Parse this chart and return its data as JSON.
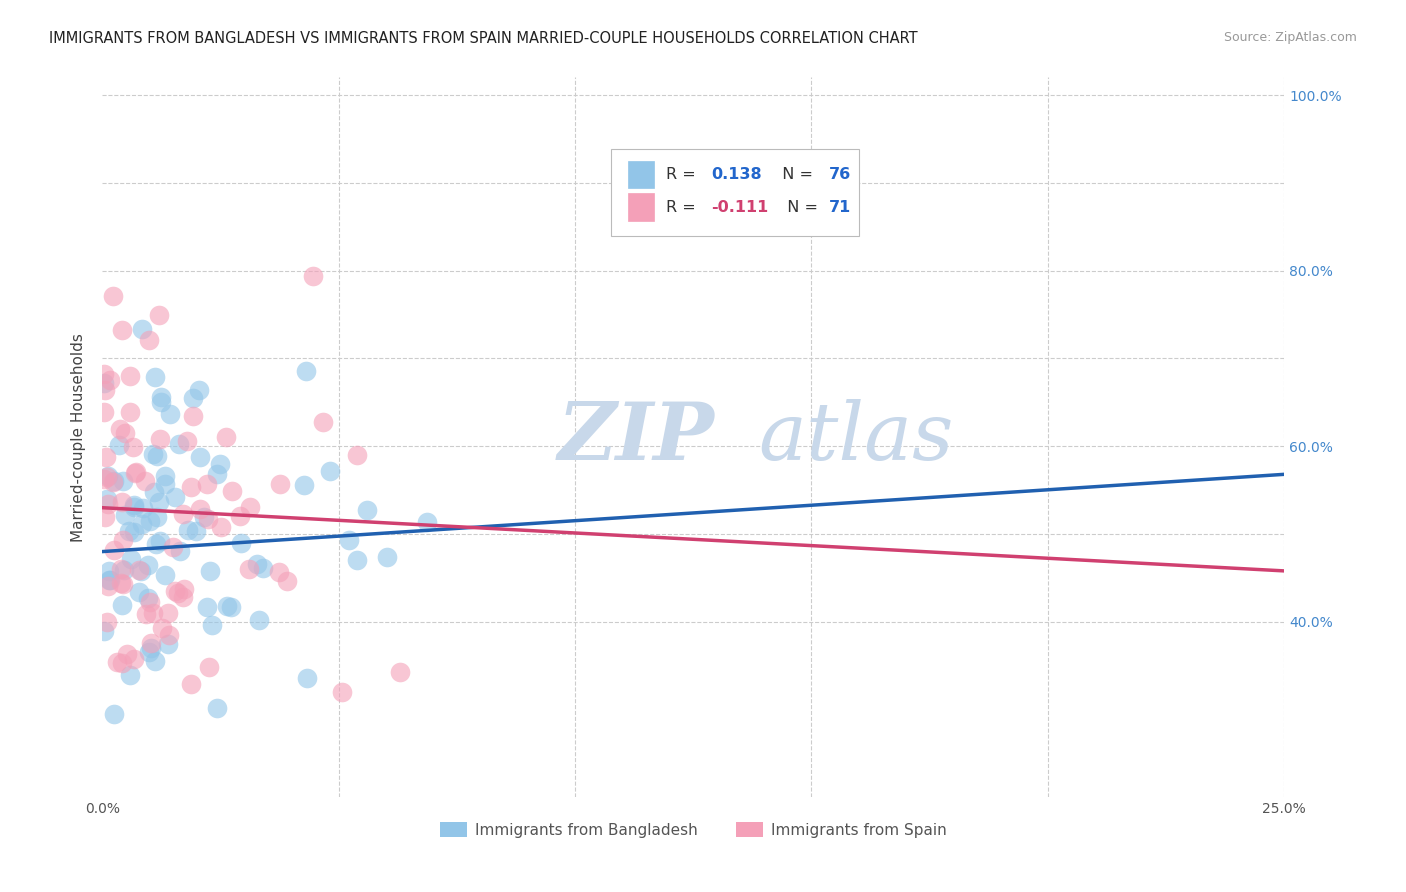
{
  "title": "IMMIGRANTS FROM BANGLADESH VS IMMIGRANTS FROM SPAIN MARRIED-COUPLE HOUSEHOLDS CORRELATION CHART",
  "source": "Source: ZipAtlas.com",
  "ylabel": "Married-couple Households",
  "xlim": [
    0.0,
    0.25
  ],
  "ylim": [
    0.2,
    1.02
  ],
  "right_ytick_labels": [
    "40.0%",
    "60.0%",
    "80.0%",
    "100.0%"
  ],
  "right_yticks": [
    0.4,
    0.6,
    0.8,
    1.0
  ],
  "r_bangladesh": 0.138,
  "n_bangladesh": 76,
  "r_spain": -0.111,
  "n_spain": 71,
  "color_bangladesh": "#92C5E8",
  "color_spain": "#F4A0B8",
  "line_color_bangladesh": "#2060B0",
  "line_color_spain": "#D04070",
  "watermark": "ZIPatlas",
  "watermark_color": "#C8D8EA",
  "background_color": "#FFFFFF",
  "grid_color": "#CCCCCC",
  "title_color": "#222222",
  "axis_label_color": "#444444",
  "legend_r1_black": "R = ",
  "legend_r1_blue": "0.138",
  "legend_n1_black": "  N = ",
  "legend_n1_blue": "76",
  "legend_r2_black": "R = ",
  "legend_r2_pink": "-0.111",
  "legend_n2_black": "  N = ",
  "legend_n2_blue": "71",
  "blue_line_y0": 0.48,
  "blue_line_y1": 0.568,
  "pink_line_y0": 0.53,
  "pink_line_y1": 0.458
}
